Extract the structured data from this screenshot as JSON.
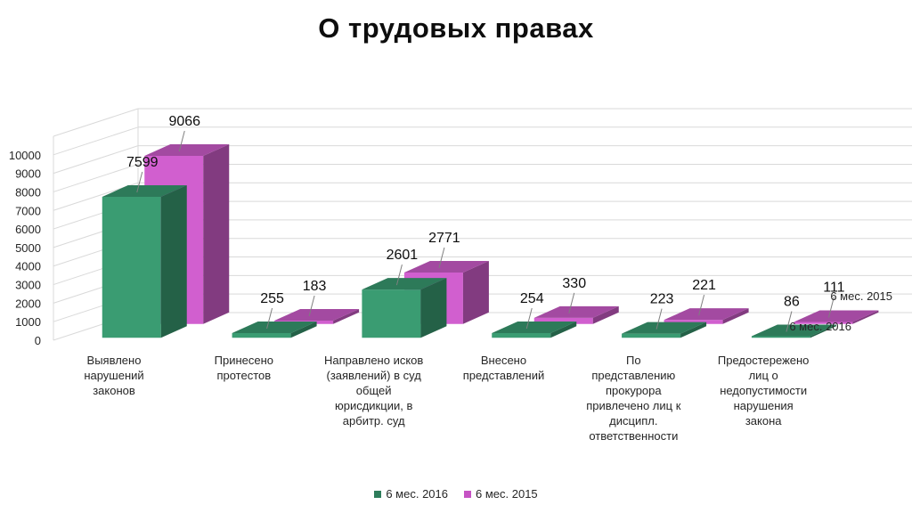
{
  "chart_data": {
    "type": "bar",
    "title": "О  трудовых правах",
    "categories": [
      [
        "Выявлено",
        "нарушений",
        "законов"
      ],
      [
        "Принесено",
        "протестов"
      ],
      [
        "Направлено исков",
        "(заявлений) в суд",
        "общей",
        "юрисдикции, в",
        "арбитр. суд"
      ],
      [
        "Внесено",
        "представлений"
      ],
      [
        "По",
        "представлению",
        "прокурора",
        "привлечено лиц к",
        "дисципл.",
        "ответственности"
      ],
      [
        "Предостережено",
        "лиц о",
        "недопустимости",
        "нарушения",
        "закона"
      ]
    ],
    "series": [
      {
        "name": "6 мес. 2016",
        "values": [
          7599,
          255,
          2601,
          254,
          223,
          86
        ],
        "color": "#3a9c72"
      },
      {
        "name": "6 мес. 2015",
        "values": [
          9066,
          183,
          2771,
          330,
          221,
          111
        ],
        "color": "#d15fcf"
      }
    ],
    "yticks": [
      0,
      1000,
      2000,
      3000,
      4000,
      5000,
      6000,
      7000,
      8000,
      9000,
      10000
    ],
    "ylim": [
      0,
      11000
    ],
    "grid": true,
    "legend": "bottom"
  }
}
